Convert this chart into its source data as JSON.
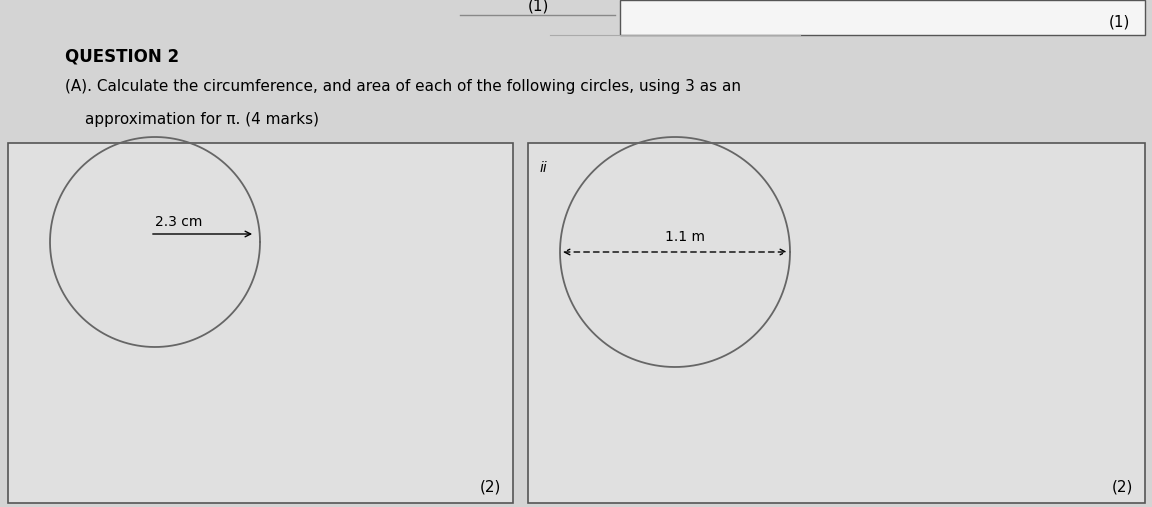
{
  "page_bg": "#d4d4d4",
  "box_bg": "#e0e0e0",
  "white": "#f5f5f5",
  "title": "QUESTION 2",
  "question_line1": "(A). Calculate the circumference, and area of each of the following circles, using 3 as an",
  "question_line2": "approximation for π. (4 marks)",
  "top_right_mark": "(1)",
  "top_center_mark": "(1)",
  "box1_mark": "(2)",
  "box2_mark": "(2)",
  "circle1_label": "2.3 cm",
  "circle2_label": "1.1 m",
  "circle2_sublabel": "ii",
  "fig_w": 11.52,
  "fig_h": 5.07,
  "dpi": 100,
  "title_fontsize": 12,
  "body_fontsize": 11,
  "mark_fontsize": 11
}
